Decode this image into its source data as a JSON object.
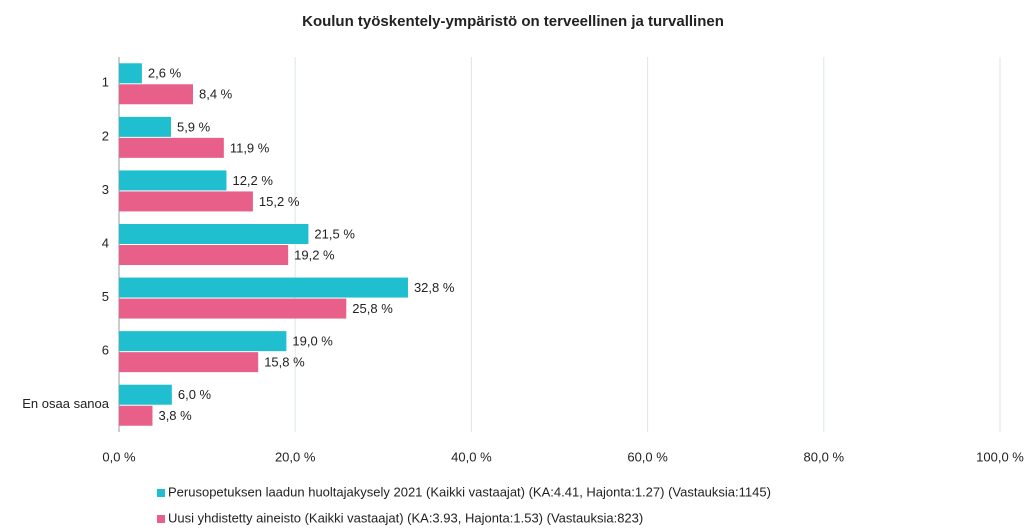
{
  "chart_data": {
    "type": "barh",
    "title": "Koulun työskentely-ympäristö on terveellinen ja turvallinen",
    "categories": [
      "1",
      "2",
      "3",
      "4",
      "5",
      "6",
      "En osaa sanoa"
    ],
    "series": [
      {
        "name": "Perusopetuksen laadun huoltajakysely 2021 (Kaikki vastaajat) (KA:4.41, Hajonta:1.27) (Vastauksia:1145)",
        "color": "#1fbfd0",
        "values": [
          2.6,
          5.9,
          12.2,
          21.5,
          32.8,
          19.0,
          6.0
        ],
        "value_labels": [
          "2,6 %",
          "5,9 %",
          "12,2 %",
          "21,5 %",
          "32,8 %",
          "19,0 %",
          "6,0 %"
        ]
      },
      {
        "name": "Uusi yhdistetty aineisto (Kaikki vastaajat) (KA:3.93, Hajonta:1.53) (Vastauksia:823)",
        "color": "#e8608a",
        "values": [
          8.4,
          11.9,
          15.2,
          19.2,
          25.8,
          15.8,
          3.8
        ],
        "value_labels": [
          "8,4 %",
          "11,9 %",
          "15,2 %",
          "19,2 %",
          "25,8 %",
          "15,8 %",
          "3,8 %"
        ]
      }
    ],
    "xlim": [
      0,
      100
    ],
    "xticks": [
      {
        "value": 0,
        "label": "0,0 %"
      },
      {
        "value": 20,
        "label": "20,0 %"
      },
      {
        "value": 40,
        "label": "40,0 %"
      },
      {
        "value": 60,
        "label": "60,0 %"
      },
      {
        "value": 80,
        "label": "80,0 %"
      },
      {
        "value": 100,
        "label": "100,0 %"
      }
    ],
    "grid": true,
    "legend": "bottom"
  }
}
